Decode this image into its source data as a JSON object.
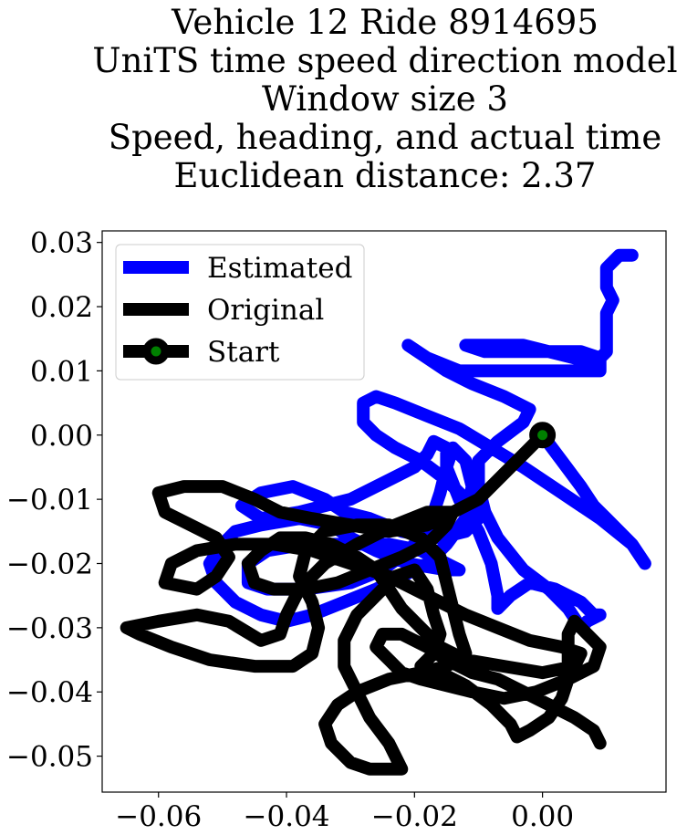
{
  "chart_data": {
    "type": "line",
    "title_lines": [
      "Vehicle 12 Ride 8914695",
      "UniTS time speed direction model",
      "Window size 3",
      "Speed, heading, and actual time",
      "Euclidean distance: 2.37"
    ],
    "xlabel": "",
    "ylabel": "",
    "xlim": [
      -0.0688,
      0.0193
    ],
    "ylim": [
      -0.0556,
      0.0318
    ],
    "x_ticks": [
      -0.06,
      -0.04,
      -0.02,
      0.0
    ],
    "x_tick_labels": [
      "−0.06",
      "−0.04",
      "−0.02",
      "0.00"
    ],
    "y_ticks": [
      0.03,
      0.02,
      0.01,
      0.0,
      -0.01,
      -0.02,
      -0.03,
      -0.04,
      -0.05
    ],
    "y_tick_labels": [
      "0.03",
      "0.02",
      "0.01",
      "0.00",
      "−0.01",
      "−0.02",
      "−0.03",
      "−0.04",
      "−0.05"
    ],
    "grid": false,
    "legend_position": "top-left",
    "legend": [
      "Estimated",
      "Original",
      "Start"
    ],
    "series": [
      {
        "name": "Estimated",
        "color": "#0000ff",
        "points": [
          [
            0.0,
            0.0
          ],
          [
            0.003,
            -0.004
          ],
          [
            0.006,
            -0.008
          ],
          [
            0.008,
            -0.011
          ],
          [
            0.01,
            -0.013
          ],
          [
            0.012,
            -0.015
          ],
          [
            0.014,
            -0.017
          ],
          [
            0.016,
            -0.02
          ],
          [
            0.014,
            -0.017
          ],
          [
            0.009,
            -0.013
          ],
          [
            0.003,
            -0.009
          ],
          [
            -0.003,
            -0.005
          ],
          [
            -0.008,
            -0.002
          ],
          [
            -0.013,
            0.001
          ],
          [
            -0.018,
            0.003
          ],
          [
            -0.023,
            0.005
          ],
          [
            -0.026,
            0.006
          ],
          [
            -0.028,
            0.005
          ],
          [
            -0.028,
            0.002
          ],
          [
            -0.026,
            0.0
          ],
          [
            -0.023,
            -0.002
          ],
          [
            -0.019,
            -0.004
          ],
          [
            -0.015,
            -0.007
          ],
          [
            -0.012,
            -0.01
          ],
          [
            -0.01,
            -0.013
          ],
          [
            -0.012,
            -0.015
          ],
          [
            -0.016,
            -0.016
          ],
          [
            -0.022,
            -0.015
          ],
          [
            -0.027,
            -0.013
          ],
          [
            -0.031,
            -0.012
          ],
          [
            -0.034,
            -0.01
          ],
          [
            -0.039,
            -0.008
          ],
          [
            -0.044,
            -0.009
          ],
          [
            -0.047,
            -0.011
          ],
          [
            -0.044,
            -0.013
          ],
          [
            -0.038,
            -0.012
          ],
          [
            -0.03,
            -0.01
          ],
          [
            -0.024,
            -0.007
          ],
          [
            -0.02,
            -0.005
          ],
          [
            -0.018,
            -0.003
          ],
          [
            -0.017,
            -0.001
          ],
          [
            -0.015,
            -0.002
          ],
          [
            -0.015,
            -0.005
          ],
          [
            -0.016,
            -0.009
          ],
          [
            -0.017,
            -0.012
          ],
          [
            -0.018,
            -0.015
          ],
          [
            -0.021,
            -0.018
          ],
          [
            -0.025,
            -0.021
          ],
          [
            -0.03,
            -0.023
          ],
          [
            -0.037,
            -0.024
          ],
          [
            -0.043,
            -0.024
          ],
          [
            -0.046,
            -0.023
          ],
          [
            -0.046,
            -0.02
          ],
          [
            -0.043,
            -0.018
          ],
          [
            -0.037,
            -0.017
          ],
          [
            -0.03,
            -0.017
          ],
          [
            -0.024,
            -0.017
          ],
          [
            -0.019,
            -0.018
          ],
          [
            -0.015,
            -0.02
          ],
          [
            -0.013,
            -0.021
          ],
          [
            -0.015,
            -0.021
          ],
          [
            -0.021,
            -0.02
          ],
          [
            -0.026,
            -0.018
          ],
          [
            -0.03,
            -0.016
          ],
          [
            -0.033,
            -0.014
          ],
          [
            -0.038,
            -0.013
          ],
          [
            -0.044,
            -0.014
          ],
          [
            -0.048,
            -0.015
          ],
          [
            -0.05,
            -0.017
          ],
          [
            -0.052,
            -0.02
          ],
          [
            -0.051,
            -0.023
          ],
          [
            -0.048,
            -0.026
          ],
          [
            -0.044,
            -0.028
          ],
          [
            -0.04,
            -0.029
          ],
          [
            -0.036,
            -0.028
          ],
          [
            -0.031,
            -0.026
          ],
          [
            -0.026,
            -0.024
          ],
          [
            -0.022,
            -0.022
          ],
          [
            -0.018,
            -0.02
          ],
          [
            -0.015,
            -0.017
          ],
          [
            -0.012,
            -0.013
          ],
          [
            -0.011,
            -0.008
          ],
          [
            -0.012,
            -0.004
          ],
          [
            -0.014,
            -0.002
          ],
          [
            -0.015,
            -0.005
          ],
          [
            -0.013,
            -0.01
          ],
          [
            -0.01,
            -0.015
          ],
          [
            -0.008,
            -0.02
          ],
          [
            -0.007,
            -0.025
          ],
          [
            -0.007,
            -0.027
          ],
          [
            -0.005,
            -0.025
          ],
          [
            -0.002,
            -0.023
          ],
          [
            0.002,
            -0.024
          ],
          [
            0.006,
            -0.026
          ],
          [
            0.008,
            -0.028
          ],
          [
            0.009,
            -0.028
          ],
          [
            0.007,
            -0.029
          ],
          [
            0.006,
            -0.03
          ],
          [
            0.004,
            -0.027
          ],
          [
            0.001,
            -0.024
          ],
          [
            -0.003,
            -0.021
          ],
          [
            -0.007,
            -0.016
          ],
          [
            -0.009,
            -0.012
          ],
          [
            -0.01,
            -0.008
          ],
          [
            -0.01,
            -0.004
          ],
          [
            -0.007,
            -0.001
          ],
          [
            -0.003,
            0.002
          ],
          [
            -0.002,
            0.004
          ],
          [
            -0.006,
            0.006
          ],
          [
            -0.011,
            0.008
          ],
          [
            -0.015,
            0.01
          ],
          [
            -0.018,
            0.012
          ],
          [
            -0.021,
            0.014
          ],
          [
            -0.018,
            0.012
          ],
          [
            -0.013,
            0.01
          ],
          [
            -0.008,
            0.01
          ],
          [
            -0.003,
            0.01
          ],
          [
            0.002,
            0.01
          ],
          [
            0.006,
            0.01
          ],
          [
            0.009,
            0.01
          ],
          [
            0.009,
            0.012
          ],
          [
            0.006,
            0.013
          ],
          [
            0.001,
            0.013
          ],
          [
            -0.004,
            0.013
          ],
          [
            -0.009,
            0.013
          ],
          [
            -0.012,
            0.014
          ],
          [
            -0.011,
            0.014
          ],
          [
            -0.008,
            0.014
          ],
          [
            -0.003,
            0.014
          ],
          [
            0.001,
            0.013
          ],
          [
            0.005,
            0.012
          ],
          [
            0.008,
            0.011
          ],
          [
            0.01,
            0.013
          ],
          [
            0.01,
            0.016
          ],
          [
            0.01,
            0.019
          ],
          [
            0.011,
            0.021
          ],
          [
            0.01,
            0.023
          ],
          [
            0.01,
            0.026
          ],
          [
            0.012,
            0.028
          ],
          [
            0.014,
            0.028
          ]
        ]
      },
      {
        "name": "Original",
        "color": "#000000",
        "points": [
          [
            0.0,
            0.0
          ],
          [
            -0.003,
            -0.003
          ],
          [
            -0.006,
            -0.006
          ],
          [
            -0.01,
            -0.01
          ],
          [
            -0.014,
            -0.012
          ],
          [
            -0.018,
            -0.014
          ],
          [
            -0.024,
            -0.015
          ],
          [
            -0.03,
            -0.014
          ],
          [
            -0.036,
            -0.013
          ],
          [
            -0.041,
            -0.012
          ],
          [
            -0.045,
            -0.01
          ],
          [
            -0.05,
            -0.008
          ],
          [
            -0.056,
            -0.008
          ],
          [
            -0.06,
            -0.009
          ],
          [
            -0.059,
            -0.012
          ],
          [
            -0.055,
            -0.014
          ],
          [
            -0.051,
            -0.016
          ],
          [
            -0.049,
            -0.019
          ],
          [
            -0.051,
            -0.022
          ],
          [
            -0.054,
            -0.024
          ],
          [
            -0.059,
            -0.023
          ],
          [
            -0.058,
            -0.02
          ],
          [
            -0.054,
            -0.018
          ],
          [
            -0.048,
            -0.017
          ],
          [
            -0.042,
            -0.017
          ],
          [
            -0.036,
            -0.018
          ],
          [
            -0.03,
            -0.02
          ],
          [
            -0.024,
            -0.022
          ],
          [
            -0.018,
            -0.025
          ],
          [
            -0.012,
            -0.028
          ],
          [
            -0.007,
            -0.03
          ],
          [
            -0.002,
            -0.032
          ],
          [
            0.003,
            -0.033
          ],
          [
            0.006,
            -0.034
          ],
          [
            0.005,
            -0.036
          ],
          [
            0.0,
            -0.037
          ],
          [
            -0.006,
            -0.036
          ],
          [
            -0.012,
            -0.035
          ],
          [
            -0.016,
            -0.033
          ],
          [
            -0.019,
            -0.03
          ],
          [
            -0.022,
            -0.027
          ],
          [
            -0.024,
            -0.024
          ],
          [
            -0.026,
            -0.021
          ],
          [
            -0.029,
            -0.019
          ],
          [
            -0.033,
            -0.017
          ],
          [
            -0.037,
            -0.016
          ],
          [
            -0.041,
            -0.016
          ],
          [
            -0.044,
            -0.018
          ],
          [
            -0.046,
            -0.02
          ],
          [
            -0.045,
            -0.023
          ],
          [
            -0.042,
            -0.024
          ],
          [
            -0.037,
            -0.024
          ],
          [
            -0.032,
            -0.023
          ],
          [
            -0.027,
            -0.021
          ],
          [
            -0.022,
            -0.019
          ],
          [
            -0.018,
            -0.017
          ],
          [
            -0.015,
            -0.014
          ],
          [
            -0.014,
            -0.012
          ],
          [
            -0.018,
            -0.012
          ],
          [
            -0.023,
            -0.014
          ],
          [
            -0.029,
            -0.017
          ],
          [
            -0.034,
            -0.02
          ],
          [
            -0.038,
            -0.024
          ],
          [
            -0.04,
            -0.028
          ],
          [
            -0.041,
            -0.031
          ],
          [
            -0.044,
            -0.032
          ],
          [
            -0.049,
            -0.029
          ],
          [
            -0.054,
            -0.028
          ],
          [
            -0.06,
            -0.029
          ],
          [
            -0.065,
            -0.03
          ],
          [
            -0.063,
            -0.031
          ],
          [
            -0.058,
            -0.033
          ],
          [
            -0.052,
            -0.035
          ],
          [
            -0.045,
            -0.036
          ],
          [
            -0.039,
            -0.036
          ],
          [
            -0.036,
            -0.034
          ],
          [
            -0.035,
            -0.03
          ],
          [
            -0.036,
            -0.026
          ],
          [
            -0.038,
            -0.022
          ],
          [
            -0.037,
            -0.018
          ],
          [
            -0.034,
            -0.015
          ],
          [
            -0.029,
            -0.014
          ],
          [
            -0.024,
            -0.014
          ],
          [
            -0.019,
            -0.016
          ],
          [
            -0.016,
            -0.019
          ],
          [
            -0.015,
            -0.023
          ],
          [
            -0.014,
            -0.027
          ],
          [
            -0.013,
            -0.031
          ],
          [
            -0.012,
            -0.034
          ],
          [
            -0.015,
            -0.036
          ],
          [
            -0.019,
            -0.037
          ],
          [
            -0.024,
            -0.038
          ],
          [
            -0.029,
            -0.04
          ],
          [
            -0.032,
            -0.042
          ],
          [
            -0.034,
            -0.045
          ],
          [
            -0.033,
            -0.048
          ],
          [
            -0.03,
            -0.051
          ],
          [
            -0.027,
            -0.052
          ],
          [
            -0.022,
            -0.052
          ],
          [
            -0.024,
            -0.048
          ],
          [
            -0.027,
            -0.044
          ],
          [
            -0.029,
            -0.04
          ],
          [
            -0.031,
            -0.036
          ],
          [
            -0.031,
            -0.032
          ],
          [
            -0.029,
            -0.028
          ],
          [
            -0.026,
            -0.025
          ],
          [
            -0.023,
            -0.022
          ],
          [
            -0.02,
            -0.021
          ],
          [
            -0.018,
            -0.024
          ],
          [
            -0.017,
            -0.028
          ],
          [
            -0.016,
            -0.031
          ],
          [
            -0.017,
            -0.034
          ],
          [
            -0.019,
            -0.036
          ],
          [
            -0.016,
            -0.037
          ],
          [
            -0.012,
            -0.039
          ],
          [
            -0.008,
            -0.042
          ],
          [
            -0.005,
            -0.045
          ],
          [
            -0.004,
            -0.047
          ],
          [
            -0.002,
            -0.046
          ],
          [
            0.001,
            -0.044
          ],
          [
            0.003,
            -0.041
          ],
          [
            0.004,
            -0.038
          ],
          [
            0.004,
            -0.035
          ],
          [
            0.004,
            -0.031
          ],
          [
            0.005,
            -0.029
          ],
          [
            0.009,
            -0.033
          ],
          [
            0.008,
            -0.036
          ],
          [
            0.004,
            -0.038
          ],
          [
            -0.001,
            -0.04
          ],
          [
            -0.006,
            -0.041
          ],
          [
            -0.011,
            -0.04
          ],
          [
            -0.015,
            -0.039
          ],
          [
            -0.019,
            -0.038
          ],
          [
            -0.022,
            -0.037
          ],
          [
            -0.024,
            -0.035
          ],
          [
            -0.026,
            -0.033
          ],
          [
            -0.025,
            -0.031
          ],
          [
            -0.022,
            -0.031
          ],
          [
            -0.018,
            -0.033
          ],
          [
            -0.015,
            -0.035
          ],
          [
            -0.011,
            -0.037
          ],
          [
            -0.007,
            -0.038
          ],
          [
            -0.003,
            -0.04
          ],
          [
            0.001,
            -0.042
          ],
          [
            0.005,
            -0.044
          ],
          [
            0.008,
            -0.046
          ],
          [
            0.009,
            -0.048
          ]
        ]
      }
    ],
    "start_point": {
      "name": "Start",
      "x": 0.0,
      "y": 0.0,
      "color": "#008000",
      "edge_color": "#000000"
    }
  }
}
